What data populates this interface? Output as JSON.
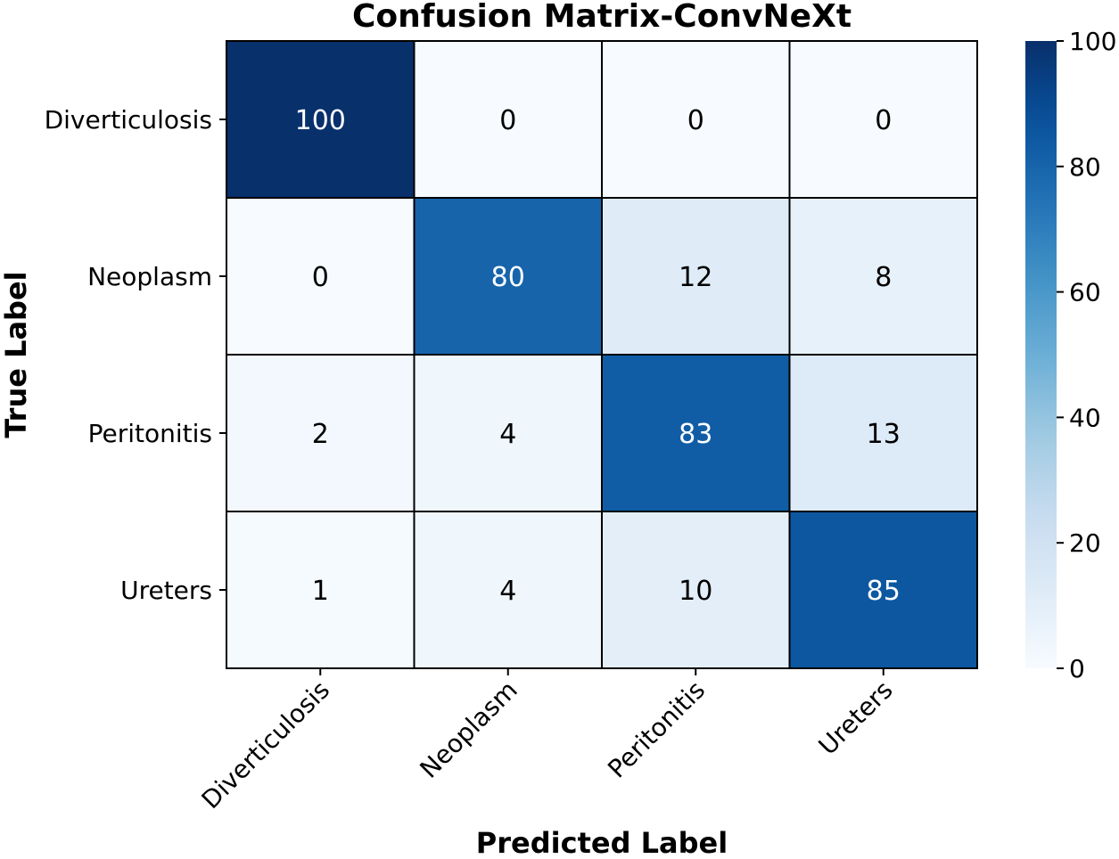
{
  "chart_data": {
    "type": "heatmap",
    "title": "Confusion Matrix-ConvNeXt",
    "xlabel": "Predicted Label",
    "ylabel": "True Label",
    "x_categories": [
      "Diverticulosis",
      "Neoplasm",
      "Peritonitis",
      "Ureters"
    ],
    "y_categories": [
      "Diverticulosis",
      "Neoplasm",
      "Peritonitis",
      "Ureters"
    ],
    "values": [
      [
        100,
        0,
        0,
        0
      ],
      [
        0,
        80,
        12,
        8
      ],
      [
        2,
        4,
        83,
        13
      ],
      [
        1,
        4,
        10,
        85
      ]
    ],
    "colorscale": "Blues",
    "color_range": [
      0,
      100
    ],
    "colorbar_ticks": [
      0,
      20,
      40,
      60,
      80,
      100
    ],
    "colors": {
      "low": "#f7fbff",
      "high": "#08306b",
      "text_dark": "#000000",
      "text_light": "#ffffff"
    }
  }
}
